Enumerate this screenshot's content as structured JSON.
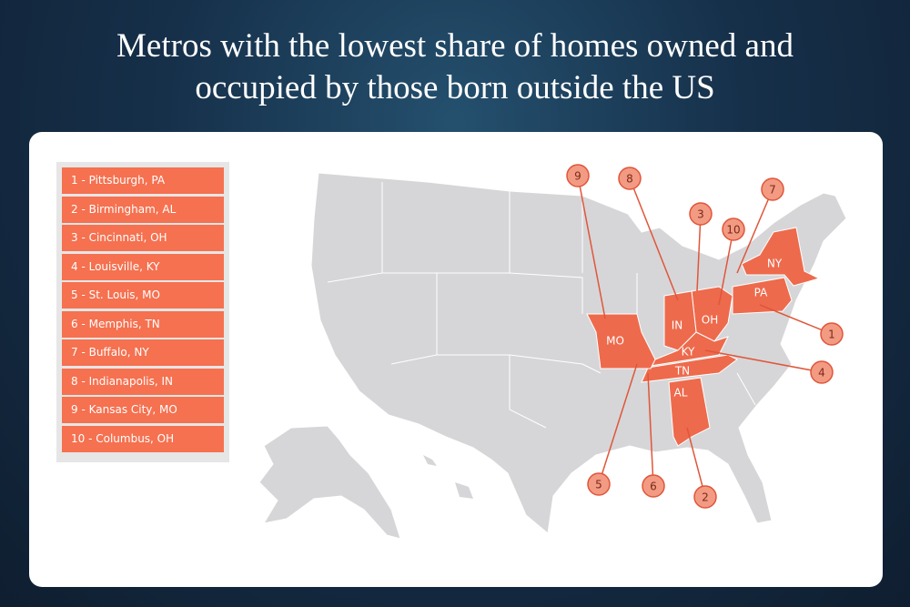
{
  "title": "Metros with the lowest share of homes owned and occupied by those born outside the US",
  "legend": [
    "1 - Pittsburgh, PA",
    "2 - Birmingham, AL",
    "3 - Cincinnati, OH",
    "4 - Louisville, KY",
    "5 - St. Louis, MO",
    "6 - Memphis, TN",
    "7 - Buffalo, NY",
    "8 - Indianapolis, IN",
    "9 - Kansas City, MO",
    "10 - Columbus, OH"
  ],
  "states": [
    "NY",
    "PA",
    "OH",
    "IN",
    "KY",
    "TN",
    "MO",
    "AL"
  ],
  "callouts": [
    "1",
    "2",
    "3",
    "4",
    "5",
    "6",
    "7",
    "8",
    "9",
    "10"
  ]
}
